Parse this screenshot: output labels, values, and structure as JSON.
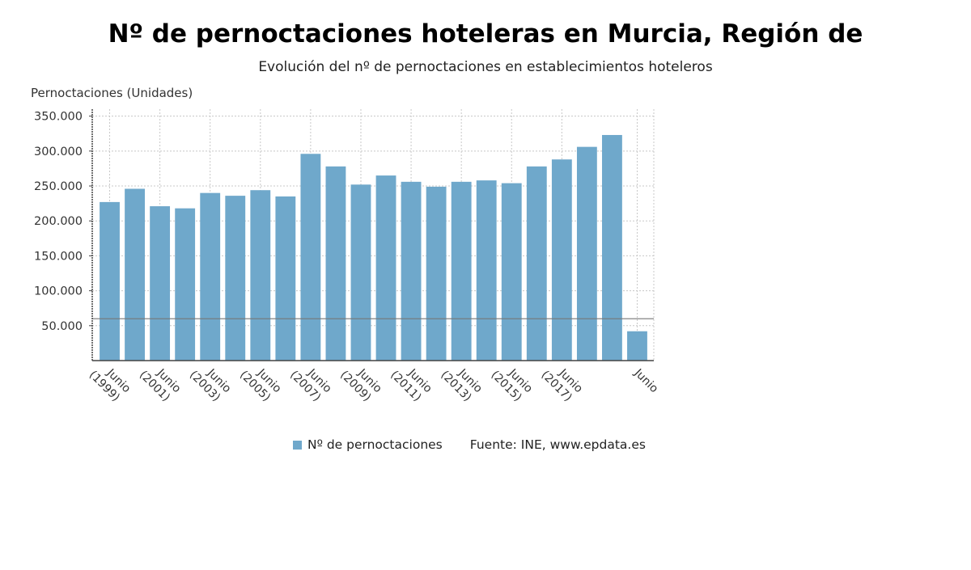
{
  "title": "Nº de pernoctaciones hoteleras en Murcia, Región de",
  "subtitle": "Evolución del nº de pernoctaciones en establecimientos hoteleros",
  "legend": {
    "series_label": "Nº de pernoctaciones",
    "source": "Fuente: INE, www.epdata.es"
  },
  "colors": {
    "bar": "#6fa8cb",
    "grid": "#c8c8c8",
    "axis": "#444444",
    "reference_line": "#777777"
  },
  "chart_data": {
    "type": "bar",
    "ylabel": "Pernoctaciones (Unidades)",
    "ylim": [
      0,
      360000
    ],
    "yticks": [
      {
        "value": 50000,
        "label": "50.000"
      },
      {
        "value": 100000,
        "label": "100.000"
      },
      {
        "value": 150000,
        "label": "150.000"
      },
      {
        "value": 200000,
        "label": "200.000"
      },
      {
        "value": 250000,
        "label": "250.000"
      },
      {
        "value": 300000,
        "label": "300.000"
      },
      {
        "value": 350000,
        "label": "350.000"
      }
    ],
    "grid": true,
    "reference_line": 60000,
    "legend_position": "bottom",
    "series": [
      {
        "name": "Nº de pernoctaciones",
        "values": [
          227000,
          246000,
          221000,
          218000,
          240000,
          236000,
          244000,
          235000,
          296000,
          278000,
          252000,
          265000,
          256000,
          249000,
          256000,
          258000,
          254000,
          278000,
          288000,
          306000,
          323000,
          42000
        ]
      }
    ],
    "xtick_labels": [
      {
        "index": 0,
        "lines": [
          "Junio",
          "(1999)"
        ]
      },
      {
        "index": 2,
        "lines": [
          "Junio",
          "(2001)"
        ]
      },
      {
        "index": 4,
        "lines": [
          "Junio",
          "(2003)"
        ]
      },
      {
        "index": 6,
        "lines": [
          "Junio",
          "(2005)"
        ]
      },
      {
        "index": 8,
        "lines": [
          "Junio",
          "(2007)"
        ]
      },
      {
        "index": 10,
        "lines": [
          "Junio",
          "(2009)"
        ]
      },
      {
        "index": 12,
        "lines": [
          "Junio",
          "(2011)"
        ]
      },
      {
        "index": 14,
        "lines": [
          "Junio",
          "(2013)"
        ]
      },
      {
        "index": 16,
        "lines": [
          "Junio",
          "(2015)"
        ]
      },
      {
        "index": 18,
        "lines": [
          "Junio",
          "(2017)"
        ]
      },
      {
        "index": 21,
        "lines": [
          "Junio"
        ]
      }
    ]
  }
}
